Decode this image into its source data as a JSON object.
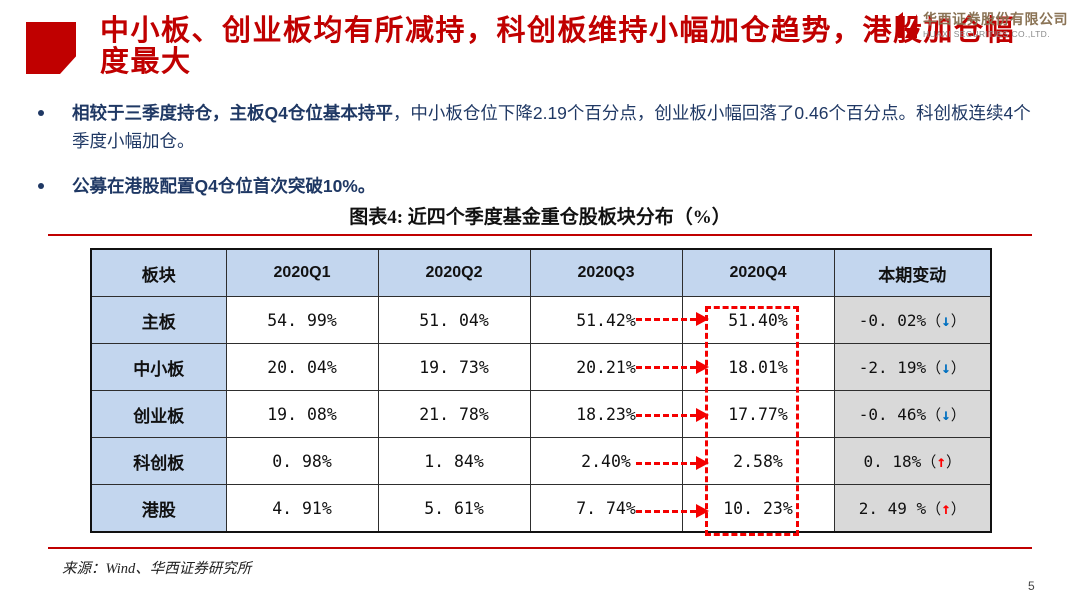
{
  "page": {
    "number": "5"
  },
  "header": {
    "title": "中小板、创业板均有所减持，科创板维持小幅加仓趋势，港股加仓幅度最大",
    "logo": {
      "company_cn": "华西证券股份有限公司",
      "company_en": "HUAXI SECURITIES CO.,LTD."
    }
  },
  "bullets": [
    {
      "bold": "相较于三季度持仓，主板Q4仓位基本持平",
      "rest": "，中小板仓位下降2.19个百分点，创业板小幅回落了0.46个百分点。科创板连续4个季度小幅加仓。"
    },
    {
      "bold": "公募在港股配置Q4仓位首次突破10%。",
      "rest": ""
    }
  ],
  "figure": {
    "title": "图表4: 近四个季度基金重仓股板块分布（%）",
    "source": "来源：Wind、华西证券研究所"
  },
  "chart_data": {
    "type": "table",
    "title": "图表4: 近四个季度基金重仓股板块分布（%）",
    "columns": [
      "板块",
      "2020Q1",
      "2020Q2",
      "2020Q3",
      "2020Q4",
      "本期变动"
    ],
    "rows": [
      {
        "sector": "主板",
        "values": [
          "54. 99%",
          "51. 04%",
          "51.42%",
          "51.40%"
        ],
        "change": "-0. 02%",
        "direction": "down"
      },
      {
        "sector": "中小板",
        "values": [
          "20. 04%",
          "19. 73%",
          "20.21%",
          "18.01%"
        ],
        "change": "-2. 19%",
        "direction": "down"
      },
      {
        "sector": "创业板",
        "values": [
          "19. 08%",
          "21. 78%",
          "18.23%",
          "17.77%"
        ],
        "change": "-0. 46%",
        "direction": "down"
      },
      {
        "sector": "科创板",
        "values": [
          "0. 98%",
          "1. 84%",
          "2.40%",
          "2.58%"
        ],
        "change": "0. 18%",
        "direction": "up"
      },
      {
        "sector": "港股",
        "values": [
          "4. 91%",
          "5. 61%",
          "7. 74%",
          "10. 23%"
        ],
        "change": "2. 49 %",
        "direction": "up"
      }
    ],
    "annotations": {
      "highlight_column": "2020Q4",
      "arrow_flow": "2020Q3 → 2020Q4",
      "up_char": "↑",
      "down_char": "↓",
      "up_color": "#FF0000",
      "down_color": "#0070C0"
    }
  },
  "colors": {
    "accent_red": "#C00000",
    "dashed_red": "#F40000",
    "navy_text": "#1F3864",
    "header_bg": "#C3D6EE",
    "change_bg": "#D9D9D9"
  }
}
